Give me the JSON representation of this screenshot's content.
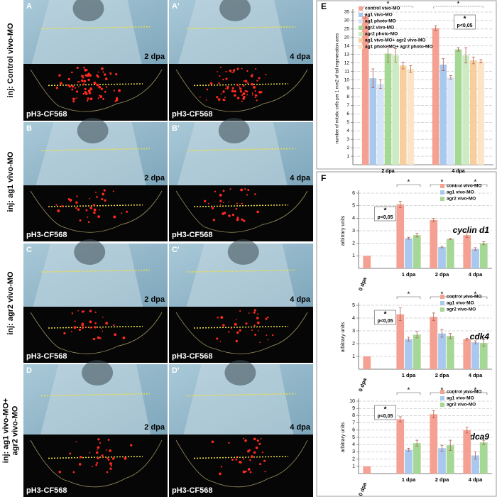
{
  "panels": [
    {
      "letter": "A",
      "stage": "2 dpa",
      "stain": "pH3-CF568"
    },
    {
      "letter": "A'",
      "stage": "4 dpa",
      "stain": "pH3-CF568"
    },
    {
      "letter": "B",
      "stage": "2 dpa",
      "stain": "pH3-CF568"
    },
    {
      "letter": "B'",
      "stage": "4 dpa",
      "stain": "pH3-CF568"
    },
    {
      "letter": "C",
      "stage": "2 dpa",
      "stain": "pH3-CF568"
    },
    {
      "letter": "C'",
      "stage": "4 dpa",
      "stain": "pH3-CF568"
    },
    {
      "letter": "D",
      "stage": "2 dpa",
      "stain": "pH3-CF568"
    },
    {
      "letter": "D'",
      "stage": "4 dpa",
      "stain": "pH3-CF568"
    }
  ],
  "row_labels": [
    [
      "inj: Control vivo-MO"
    ],
    [
      "inj: ag1 vivo-MO"
    ],
    [
      "inj: agr2 vivo-MO"
    ],
    [
      "inj: ag1 vivo-MO+",
      "agr2 vivo-MO"
    ]
  ],
  "chart_data": [
    {
      "type": "bar",
      "panel": "E",
      "y_label": "number of mitotic cells per 1 mm2 of tail regeneration area",
      "categories": [
        "2 dpa",
        "4 dpa"
      ],
      "axis_break": true,
      "grid": true,
      "ylim": [
        0,
        35
      ],
      "yticks": [
        1,
        2,
        3,
        4,
        5,
        6,
        7,
        8,
        9,
        10,
        11,
        12,
        13,
        14,
        20,
        25,
        30,
        35
      ],
      "significance": [
        "*",
        "*"
      ],
      "annotation": {
        "star": "*",
        "text": "p<0,05"
      },
      "series": [
        {
          "name": "control vivo-MO",
          "color": "#f4a193",
          "values": [
            32.5,
            25.5
          ],
          "errors": [
            1.2,
            1.5
          ]
        },
        {
          "name": "ag1 vivo-MO",
          "color": "#a9c8ee",
          "values": [
            10.2,
            11.8
          ],
          "errors": [
            1.1,
            0.7
          ]
        },
        {
          "name": "ag1 photo-MO",
          "color": "#d5e4f7",
          "values": [
            9.5,
            10.3
          ],
          "errors": [
            0.5,
            0.2
          ]
        },
        {
          "name": "agr2 vivo-MO",
          "color": "#a5d795",
          "values": [
            13.1,
            13.6
          ],
          "errors": [
            1.0,
            0.2
          ]
        },
        {
          "name": "agr2 photo-MO",
          "color": "#cdebc2",
          "values": [
            12.9,
            12.9
          ],
          "errors": [
            0.8,
            0.9
          ]
        },
        {
          "name": "ag1 vivo-MO+ agr2 vivo-MO",
          "color": "#f7cf9f",
          "values": [
            11.7,
            12.3
          ],
          "errors": [
            0.4,
            0.4
          ]
        },
        {
          "name": "ag1 photo-MO+ agr2 photo-MO",
          "color": "#fbe4c8",
          "values": [
            11.3,
            12.2
          ],
          "errors": [
            0.4,
            0.2
          ]
        }
      ]
    },
    {
      "type": "bar",
      "panel": "F",
      "title": "cyclin d1",
      "y_label": "arbitrary units",
      "grid": true,
      "categories": [
        "0 dpa",
        "1 dpa",
        "2 dpa",
        "4 dpa"
      ],
      "ylim": [
        0,
        6
      ],
      "yticks": [
        1,
        2,
        3,
        4,
        5,
        6
      ],
      "significance": [
        null,
        "*",
        "*",
        "*"
      ],
      "annotation": {
        "star": "*",
        "text": "p<0,05"
      },
      "series": [
        {
          "name": "control vivo-MO",
          "color": "#f4a193",
          "values": [
            1,
            5.1,
            3.85,
            2.65
          ],
          "errors": [
            0,
            0.25,
            0.12,
            0.2
          ]
        },
        {
          "name": "ag1 vivo-MO",
          "color": "#a9c8ee",
          "values": [
            null,
            2.4,
            1.7,
            1.55
          ],
          "errors": [
            null,
            0.08,
            0.06,
            0.1
          ]
        },
        {
          "name": "agr2 vivo-MO",
          "color": "#a5d795",
          "values": [
            null,
            2.65,
            2.35,
            2.0
          ],
          "errors": [
            null,
            0.15,
            0.05,
            0.12
          ]
        }
      ]
    },
    {
      "type": "bar",
      "title": "cdk4",
      "y_label": "arbitrary units",
      "grid": true,
      "categories": [
        "0 dpa",
        "1 dpa",
        "2 dpa",
        "4 dpa"
      ],
      "ylim": [
        0,
        5
      ],
      "yticks": [
        1,
        2,
        3,
        4,
        5
      ],
      "significance": [
        null,
        "*",
        "*",
        "*"
      ],
      "annotation": {
        "star": "*",
        "text": "p<0,05"
      },
      "series": [
        {
          "name": "control vivo-MO",
          "color": "#f4a193",
          "values": [
            1,
            4.3,
            4.1,
            2.35
          ],
          "errors": [
            0,
            0.5,
            0.3,
            0.07
          ]
        },
        {
          "name": "ag1 vivo-MO",
          "color": "#a9c8ee",
          "values": [
            null,
            2.35,
            2.8,
            2.1
          ],
          "errors": [
            null,
            0.15,
            0.3,
            0.12
          ]
        },
        {
          "name": "agr2 vivo-MO",
          "color": "#a5d795",
          "values": [
            null,
            2.7,
            2.6,
            2.05
          ],
          "errors": [
            null,
            0.25,
            0.2,
            0.25
          ]
        }
      ]
    },
    {
      "type": "bar",
      "title": "cdca9",
      "y_label": "arbitrary units",
      "grid": true,
      "categories": [
        "0 dpa",
        "1 dpa",
        "2 dpa",
        "4 dpa"
      ],
      "ylim": [
        0,
        10
      ],
      "yticks": [
        1,
        2,
        3,
        4,
        5,
        6,
        7,
        8,
        9,
        10
      ],
      "significance": [
        null,
        "*",
        "*",
        "*"
      ],
      "annotation": {
        "star": "*",
        "text": "p<0,05"
      },
      "series": [
        {
          "name": "control vivo-MO",
          "color": "#f4a193",
          "values": [
            1,
            7.5,
            8.2,
            6.0
          ],
          "errors": [
            0,
            0.35,
            0.5,
            0.4
          ]
        },
        {
          "name": "ag1 vivo-MO",
          "color": "#a9c8ee",
          "values": [
            null,
            3.3,
            3.5,
            2.5
          ],
          "errors": [
            null,
            0.2,
            0.4,
            0.5
          ]
        },
        {
          "name": "agr2 vivo-MO",
          "color": "#a5d795",
          "values": [
            null,
            4.2,
            3.9,
            4.3
          ],
          "errors": [
            null,
            0.4,
            0.7,
            0.3
          ]
        }
      ]
    }
  ]
}
